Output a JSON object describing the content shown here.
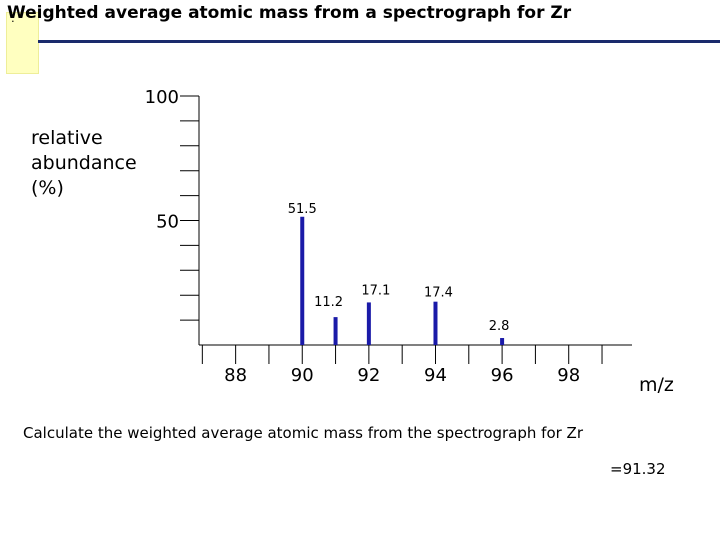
{
  "page": {
    "title": "Weighted average atomic mass from a spectrograph for Zr",
    "sticky_note": ":",
    "question": "Calculate the weighted average atomic mass from the spectrograph for Zr",
    "answer": "=91.32"
  },
  "colors": {
    "bar": "#1a1aa8",
    "title_rule": "#1a2a6c"
  },
  "chart_data": {
    "type": "bar",
    "title": "",
    "ylabel_lines": [
      "relative",
      "abundance",
      "(%)"
    ],
    "xlabel": "m/z",
    "ylim": [
      0,
      100
    ],
    "y_ticks_labeled": [
      {
        "value": 100,
        "label": "100"
      },
      {
        "value": 50,
        "label": "50"
      }
    ],
    "y_minor_step": 10,
    "xlim": [
      86.9,
      99.9
    ],
    "x_ticks_labeled": [
      {
        "value": 88,
        "label": "88"
      },
      {
        "value": 90,
        "label": "90"
      },
      {
        "value": 92,
        "label": "92"
      },
      {
        "value": 94,
        "label": "94"
      },
      {
        "value": 96,
        "label": "96"
      },
      {
        "value": 98,
        "label": "98"
      }
    ],
    "x_minor": [
      87,
      89,
      91,
      93,
      95,
      97,
      99
    ],
    "bars": [
      {
        "x": 90,
        "value": 51.5,
        "label": "51.5"
      },
      {
        "x": 91,
        "value": 11.2,
        "label": "11.2"
      },
      {
        "x": 92,
        "value": 17.1,
        "label": "17.1"
      },
      {
        "x": 94,
        "value": 17.4,
        "label": "17.4"
      },
      {
        "x": 96,
        "value": 2.8,
        "label": "2.8"
      }
    ]
  }
}
